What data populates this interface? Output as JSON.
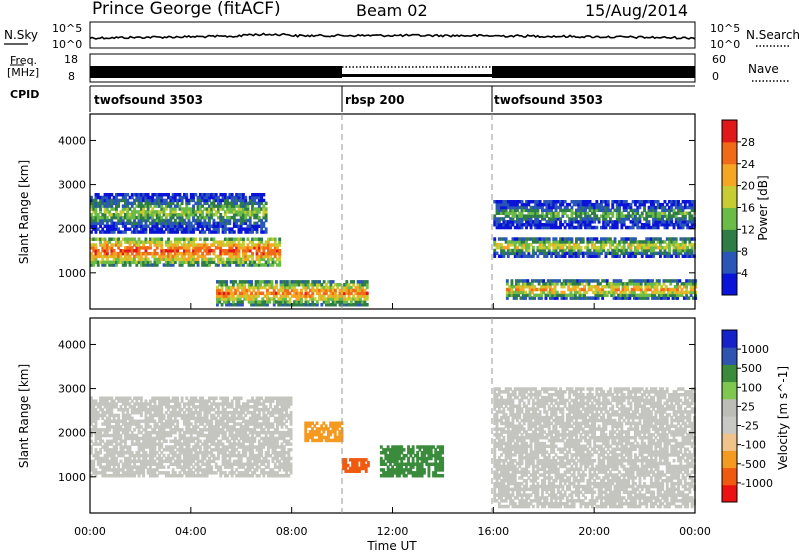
{
  "header": {
    "station": "Prince George (fitACF)",
    "beam": "Beam 02",
    "date": "15/Aug/2014"
  },
  "noise_panel": {
    "left_label": "N.Sky",
    "left_ticks": [
      "10^5",
      "10^0"
    ],
    "right_ticks": [
      "10^5",
      "10^0"
    ],
    "right_label": "N.Search"
  },
  "freq_panel": {
    "left_label_1": "Freq.",
    "left_label_2": "[MHz]",
    "left_ticks": [
      "18",
      "8"
    ],
    "right_ticks": [
      "60",
      "0"
    ],
    "right_label": "Nave"
  },
  "cpid": {
    "label": "CPID",
    "segments": [
      {
        "name": "twofsound 3503",
        "start": 0,
        "end": 10
      },
      {
        "name": "rbsp 200",
        "start": 10,
        "end": 16
      },
      {
        "name": "twofsound 3503",
        "start": 16,
        "end": 24
      }
    ]
  },
  "colors": {
    "power": [
      "#0a14d8",
      "#2a56b8",
      "#2f7d46",
      "#6bbb47",
      "#c8cc33",
      "#f5a623",
      "#f06a18",
      "#e01818"
    ],
    "velocity_scale": [
      "#ee1111",
      "#f05a10",
      "#f59a20",
      "#f0c38a",
      "#c8c8c4",
      "#bdbdb8",
      "#7fc850",
      "#3a8c3c",
      "#2e54b0",
      "#1522c9"
    ],
    "gray": "#c5c5c0"
  },
  "chart_data": [
    {
      "type": "heatmap",
      "title": "",
      "ylabel": "Slant Range [km]",
      "xlabel": "",
      "ylim": [
        180,
        4600
      ],
      "xlim": [
        0,
        24
      ],
      "yticks": [
        "1000",
        "2000",
        "3000",
        "4000"
      ],
      "colorbar": {
        "label": "Power [dB]",
        "ticks": [
          "4",
          "8",
          "12",
          "16",
          "20",
          "24",
          "28"
        ],
        "range": [
          0,
          32
        ]
      },
      "dominant_echo_bands": [
        {
          "x_start": 0,
          "x_end": 7.5,
          "range_start": 1150,
          "range_end": 1800,
          "power_db": 28
        },
        {
          "x_start": 0,
          "x_end": 7.0,
          "range_start": 1900,
          "range_end": 2800,
          "power_db": 16
        },
        {
          "x_start": 5,
          "x_end": 11,
          "range_start": 250,
          "range_end": 800,
          "power_db": 26
        },
        {
          "x_start": 16.5,
          "x_end": 24,
          "range_start": 400,
          "range_end": 800,
          "power_db": 24
        },
        {
          "x_start": 16,
          "x_end": 24,
          "range_start": 1350,
          "range_end": 1800,
          "power_db": 20
        },
        {
          "x_start": 16,
          "x_end": 24,
          "range_start": 2000,
          "range_end": 2600,
          "power_db": 14
        }
      ]
    },
    {
      "type": "heatmap",
      "title": "",
      "ylabel": "Slant Range [km]",
      "xlabel": "Time UT",
      "ylim": [
        180,
        4600
      ],
      "xlim": [
        0,
        24
      ],
      "yticks": [
        "1000",
        "2000",
        "3000",
        "4000"
      ],
      "xticks": [
        "00:00",
        "04:00",
        "08:00",
        "12:00",
        "16:00",
        "20:00",
        "00:00"
      ],
      "colorbar": {
        "label": "Velocity [m s^-1]",
        "ticks": [
          "1000",
          "500",
          "100",
          "25",
          "-25",
          "-100",
          "-500",
          "-1000"
        ]
      },
      "notable_regions": [
        {
          "x_start": 0,
          "x_end": 8,
          "range_start": 1000,
          "range_end": 2800,
          "velocity_class": "ground scatter"
        },
        {
          "x_start": 8.5,
          "x_end": 10,
          "range_start": 1800,
          "range_end": 2200,
          "velocity_ms": -200
        },
        {
          "x_start": 10,
          "x_end": 11,
          "range_start": 1100,
          "range_end": 1400,
          "velocity_ms": -800
        },
        {
          "x_start": 11.5,
          "x_end": 14,
          "range_start": 1000,
          "range_end": 1700,
          "velocity_ms": 200
        },
        {
          "x_start": 16,
          "x_end": 24,
          "range_start": 300,
          "range_end": 3000,
          "velocity_class": "ground scatter"
        }
      ]
    }
  ]
}
